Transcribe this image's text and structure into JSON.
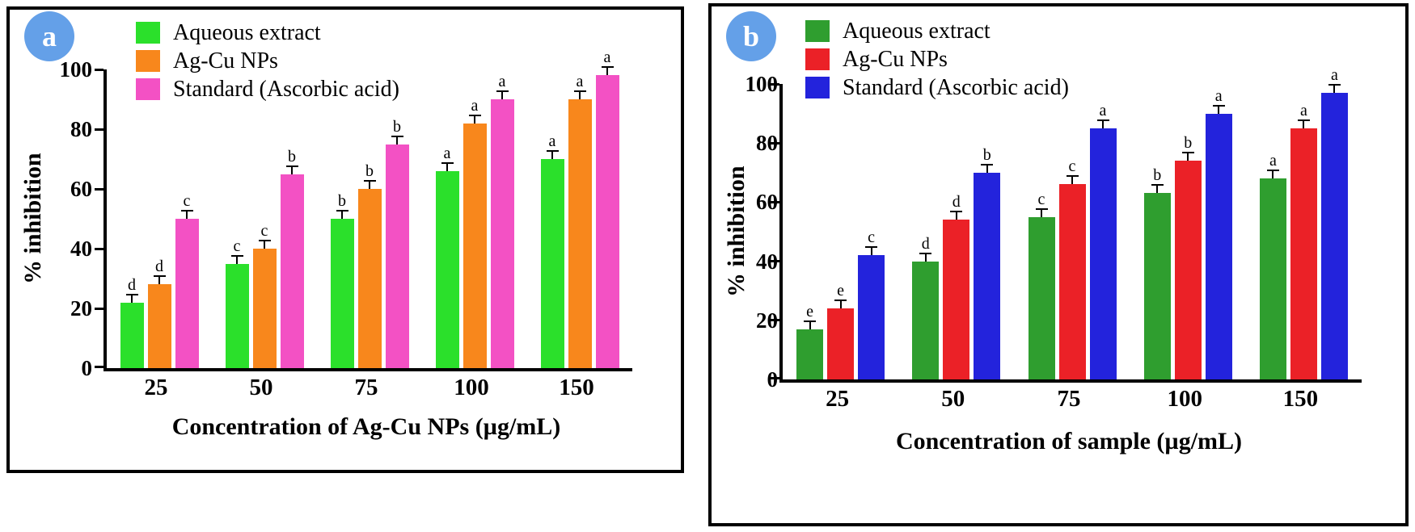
{
  "figure": {
    "background": "#ffffff",
    "panel_border_color": "#000000",
    "badge_color": "#64A0E8"
  },
  "chart_data": [
    {
      "badge": "a",
      "type": "bar",
      "title": "",
      "xlabel": "Concentration of  Ag-Cu NPs (µg/mL)",
      "ylabel": "% inhibition",
      "categories": [
        "25",
        "50",
        "75",
        "100",
        "150"
      ],
      "ylim": [
        0,
        100
      ],
      "yticks": [
        0,
        20,
        40,
        60,
        80,
        100
      ],
      "grid": false,
      "legend_position": "top-left",
      "error_bar": 2,
      "series": [
        {
          "name": "Aqueous extract",
          "color": "#2BE02B",
          "values": [
            22,
            35,
            50,
            66,
            70
          ],
          "sig_letters": [
            "d",
            "c",
            "b",
            "a",
            "a"
          ]
        },
        {
          "name": "Ag-Cu NPs",
          "color": "#F8871C",
          "values": [
            28,
            40,
            60,
            82,
            90
          ],
          "sig_letters": [
            "d",
            "c",
            "b",
            "a",
            "a"
          ]
        },
        {
          "name": "Standard (Ascorbic acid)",
          "color": "#F351C4",
          "values": [
            50,
            65,
            75,
            90,
            98
          ],
          "sig_letters": [
            "c",
            "b",
            "b",
            "a",
            "a"
          ]
        }
      ]
    },
    {
      "badge": "b",
      "type": "bar",
      "title": "",
      "xlabel": "Concentration of sample (µg/mL)",
      "ylabel": "% inhibition",
      "categories": [
        "25",
        "50",
        "75",
        "100",
        "150"
      ],
      "ylim": [
        0,
        100
      ],
      "yticks": [
        0,
        20,
        40,
        60,
        80,
        100
      ],
      "grid": false,
      "legend_position": "top-left",
      "error_bar": 2,
      "series": [
        {
          "name": "Aqueous extract",
          "color": "#2F9E2F",
          "values": [
            17,
            40,
            55,
            63,
            68
          ],
          "sig_letters": [
            "e",
            "d",
            "c",
            "b",
            "a"
          ]
        },
        {
          "name": "Ag-Cu NPs",
          "color": "#EB2127",
          "values": [
            24,
            54,
            66,
            74,
            85
          ],
          "sig_letters": [
            "e",
            "d",
            "c",
            "b",
            "a"
          ]
        },
        {
          "name": "Standard (Ascorbic acid)",
          "color": "#2323DC",
          "values": [
            42,
            70,
            85,
            90,
            97
          ],
          "sig_letters": [
            "c",
            "b",
            "a",
            "a",
            "a"
          ]
        }
      ]
    }
  ]
}
